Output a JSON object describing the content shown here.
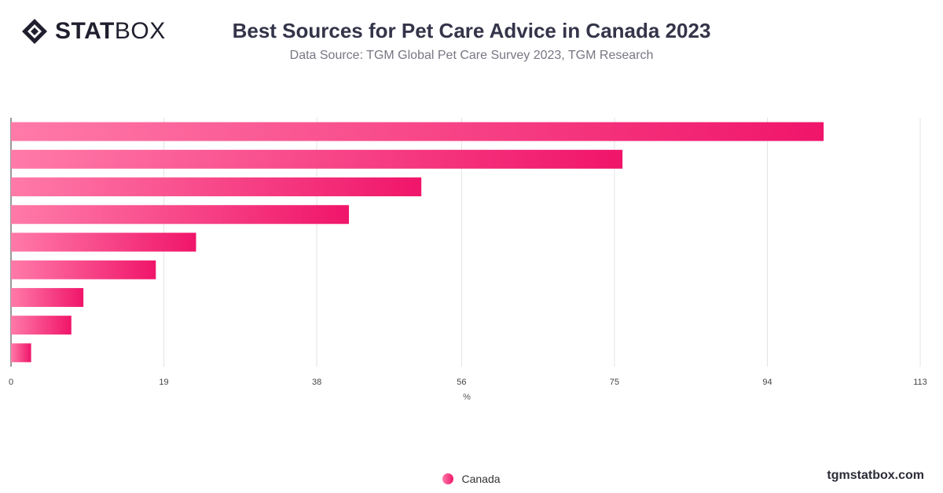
{
  "header": {
    "logo_text_bold": "STAT",
    "logo_text_light": "BOX",
    "title": "Best Sources for Pet Care Advice in Canada 2023",
    "subtitle": "Data Source: TGM Global Pet Care Survey 2023, TGM Research"
  },
  "footer": {
    "site": "tgmstatbox.com"
  },
  "colors": {
    "bar_start": "#ff7aa8",
    "bar_end": "#f0156a",
    "grid": "#e3e3e3",
    "axis": "#333333"
  },
  "chart_data": {
    "type": "bar",
    "orientation": "horizontal",
    "title": "Best Sources for Pet Care Advice in Canada 2023",
    "subtitle": "Data Source: TGM Global Pet Care Survey 2023, TGM Research",
    "xlabel": "%",
    "ylabel": "",
    "xlim": [
      0,
      113
    ],
    "x_ticks": [
      0,
      19,
      38,
      56,
      75,
      94,
      113
    ],
    "series": [
      {
        "name": "Canada",
        "values": [
          101,
          76,
          51,
          42,
          23,
          18,
          9,
          7.5,
          2.5
        ]
      }
    ],
    "legend_position": "bottom",
    "grid": true
  }
}
